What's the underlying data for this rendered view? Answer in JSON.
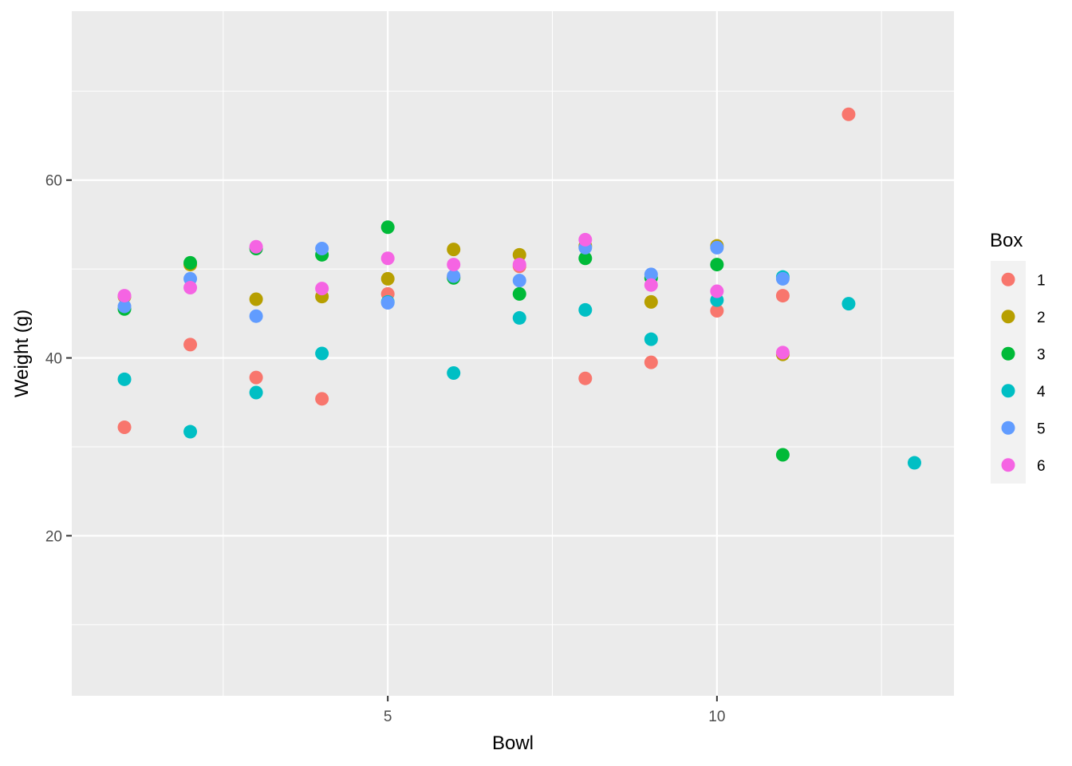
{
  "chart_data": {
    "type": "scatter",
    "title": "",
    "xlabel": "Bowl",
    "ylabel": "Weight (g)",
    "xlim": [
      0.2,
      13.6
    ],
    "ylim": [
      2,
      79
    ],
    "x_ticks": [
      5,
      10
    ],
    "y_ticks": [
      20,
      40,
      60
    ],
    "x_minor_ticks": [
      2.5,
      7.5,
      12.5
    ],
    "y_minor_ticks": [
      10,
      30,
      50,
      70
    ],
    "grid": true,
    "panel_background": "#ebebeb",
    "legend": {
      "title": "Box",
      "position": "right",
      "background": "#f2f2f2"
    },
    "series": [
      {
        "name": "1",
        "color": "#F8766D",
        "points": [
          [
            1,
            32.2
          ],
          [
            2,
            41.5
          ],
          [
            3,
            37.8
          ],
          [
            4,
            35.4
          ],
          [
            5,
            47.2
          ],
          [
            6,
            49.1
          ],
          [
            7,
            50.3
          ],
          [
            8,
            37.7
          ],
          [
            9,
            39.5
          ],
          [
            10,
            45.3
          ],
          [
            11,
            47.0
          ],
          [
            12,
            67.4
          ]
        ]
      },
      {
        "name": "2",
        "color": "#B79F00",
        "points": [
          [
            1,
            46.9
          ],
          [
            2,
            50.5
          ],
          [
            3,
            46.6
          ],
          [
            4,
            46.9
          ],
          [
            5,
            48.9
          ],
          [
            6,
            52.2
          ],
          [
            7,
            51.6
          ],
          [
            8,
            52.6
          ],
          [
            9,
            46.3
          ],
          [
            10,
            52.6
          ],
          [
            11,
            40.4
          ]
        ]
      },
      {
        "name": "3",
        "color": "#00BA38",
        "points": [
          [
            1,
            45.5
          ],
          [
            2,
            50.7
          ],
          [
            3,
            52.3
          ],
          [
            4,
            51.6
          ],
          [
            5,
            54.7
          ],
          [
            6,
            49.0
          ],
          [
            7,
            47.2
          ],
          [
            8,
            51.2
          ],
          [
            9,
            49.0
          ],
          [
            10,
            50.5
          ],
          [
            11,
            29.1
          ]
        ]
      },
      {
        "name": "4",
        "color": "#00BFC4",
        "points": [
          [
            1,
            37.6
          ],
          [
            2,
            31.7
          ],
          [
            3,
            36.1
          ],
          [
            4,
            40.5
          ],
          [
            5,
            46.3
          ],
          [
            6,
            38.3
          ],
          [
            7,
            44.5
          ],
          [
            8,
            45.4
          ],
          [
            9,
            42.1
          ],
          [
            10,
            46.5
          ],
          [
            11,
            49.1
          ],
          [
            12,
            46.1
          ],
          [
            13,
            28.2
          ]
        ]
      },
      {
        "name": "5",
        "color": "#619CFF",
        "points": [
          [
            1,
            45.8
          ],
          [
            2,
            48.9
          ],
          [
            3,
            44.7
          ],
          [
            4,
            52.3
          ],
          [
            5,
            46.2
          ],
          [
            6,
            49.2
          ],
          [
            7,
            48.7
          ],
          [
            8,
            52.4
          ],
          [
            9,
            49.4
          ],
          [
            10,
            52.4
          ],
          [
            11,
            48.9
          ]
        ]
      },
      {
        "name": "6",
        "color": "#F564E3",
        "points": [
          [
            1,
            47.0
          ],
          [
            2,
            47.9
          ],
          [
            3,
            52.5
          ],
          [
            4,
            47.8
          ],
          [
            5,
            51.2
          ],
          [
            6,
            50.5
          ],
          [
            7,
            50.5
          ],
          [
            8,
            53.3
          ],
          [
            9,
            48.2
          ],
          [
            10,
            47.5
          ],
          [
            11,
            40.6
          ]
        ]
      }
    ]
  }
}
